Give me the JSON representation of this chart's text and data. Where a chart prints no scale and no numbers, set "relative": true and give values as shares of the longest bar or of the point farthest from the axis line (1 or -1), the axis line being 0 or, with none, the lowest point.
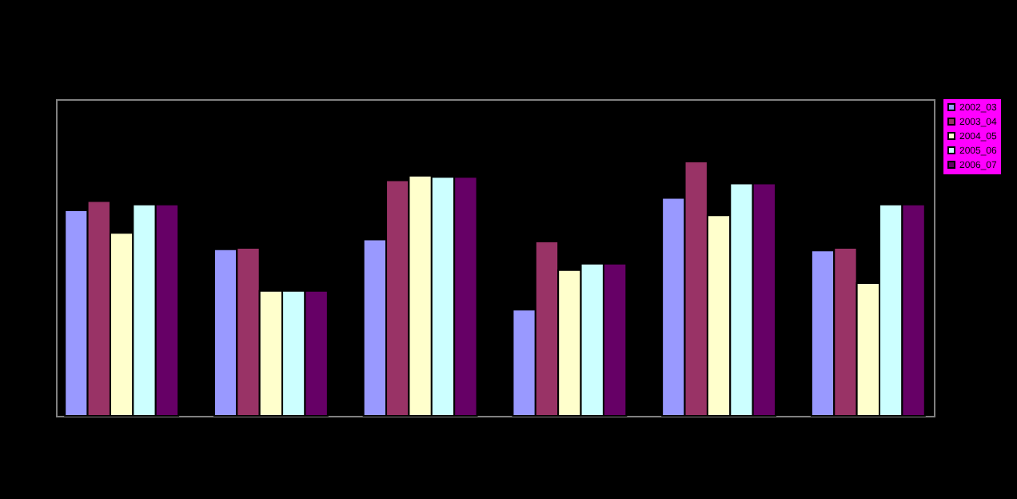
{
  "chart_data": {
    "type": "bar",
    "relative": true,
    "categories": [
      null,
      null,
      null,
      null,
      null,
      null
    ],
    "legend": "right",
    "series": [
      {
        "name": "2002_03",
        "color": "#9999ff",
        "values": [
          0.808,
          0.655,
          0.693,
          0.417,
          0.857,
          0.65
        ]
      },
      {
        "name": "2003_04",
        "color": "#993366",
        "values": [
          0.844,
          0.66,
          0.926,
          0.685,
          1,
          0.66
        ]
      },
      {
        "name": "2004_05",
        "color": "#ffffcc",
        "values": [
          0.719,
          0.491,
          0.944,
          0.573,
          0.788,
          0.522
        ]
      },
      {
        "name": "2005_06",
        "color": "#ccffff",
        "values": [
          0.831,
          0.491,
          0.939,
          0.598,
          0.913,
          0.831
        ]
      },
      {
        "name": "2006_07",
        "color": "#660066",
        "values": [
          0.831,
          0.491,
          0.939,
          0.598,
          0.913,
          0.831
        ]
      }
    ]
  }
}
